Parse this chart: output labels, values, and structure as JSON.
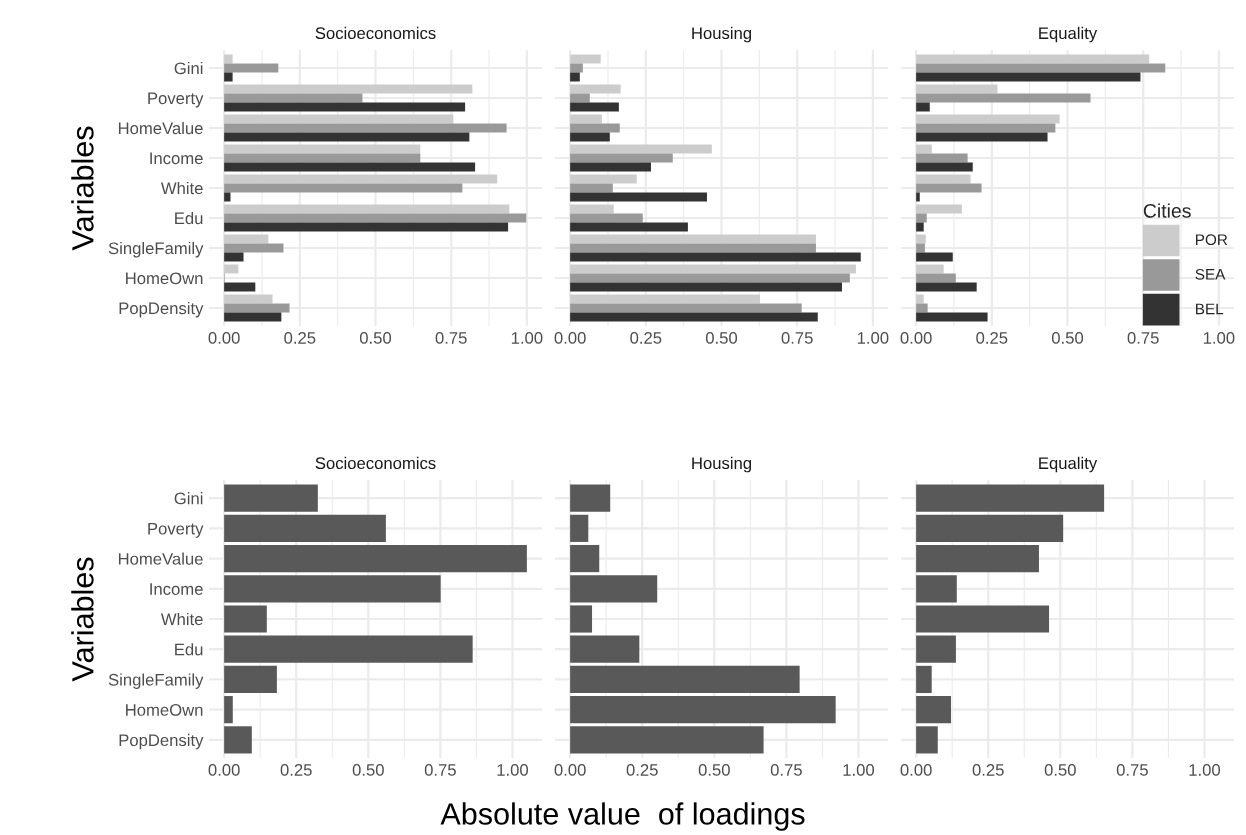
{
  "chart_data": [
    {
      "type": "bar",
      "orientation": "horizontal",
      "title": "Socioeconomics",
      "ylabel": "Variables",
      "categories": [
        "Gini",
        "Poverty",
        "HomeValue",
        "Income",
        "White",
        "Edu",
        "SingleFamily",
        "HomeOwn",
        "PopDensity"
      ],
      "xlim": [
        -0.05,
        1.05
      ],
      "xticks": [
        {
          "value": 0,
          "label": "0.00"
        },
        {
          "value": 0.25,
          "label": "0.25"
        },
        {
          "value": 0.5,
          "label": "0.50"
        },
        {
          "value": 0.75,
          "label": "0.75"
        },
        {
          "value": 1,
          "label": "1.00"
        }
      ],
      "grid": true,
      "series": [
        {
          "color": "#cccccc",
          "values": [
            0.028,
            0.82,
            0.757,
            0.648,
            0.902,
            0.942,
            0.146,
            0.047,
            0.16
          ]
        },
        {
          "color": "#999999",
          "values": [
            0.179,
            0.457,
            0.933,
            0.648,
            0.787,
            0.998,
            0.196,
            0.002,
            0.216
          ]
        },
        {
          "color": "#333333",
          "values": [
            0.028,
            0.796,
            0.81,
            0.829,
            0.021,
            0.938,
            0.064,
            0.103,
            0.189
          ]
        }
      ]
    },
    {
      "type": "bar",
      "orientation": "horizontal",
      "title": "Housing",
      "tick_labels": "x",
      "xlim": [
        -0.05,
        1.05
      ],
      "xticks": [
        {
          "value": 0,
          "label": "0.00"
        },
        {
          "value": 0.25,
          "label": "0.25"
        },
        {
          "value": 0.5,
          "label": "0.50"
        },
        {
          "value": 0.75,
          "label": "0.75"
        },
        {
          "value": 1,
          "label": "1.00"
        }
      ],
      "grid": true,
      "series": [
        {
          "color": "#cccccc",
          "values": [
            0.101,
            0.167,
            0.105,
            0.468,
            0.22,
            0.144,
            0.812,
            0.944,
            0.627
          ]
        },
        {
          "color": "#999999",
          "values": [
            0.042,
            0.065,
            0.164,
            0.339,
            0.141,
            0.24,
            0.812,
            0.924,
            0.765
          ]
        },
        {
          "color": "#333333",
          "values": [
            0.032,
            0.161,
            0.131,
            0.267,
            0.452,
            0.389,
            0.96,
            0.898,
            0.818
          ]
        }
      ]
    },
    {
      "type": "bar",
      "orientation": "horizontal",
      "title": "Equality",
      "tick_labels": "x",
      "legend": "bottom right",
      "legend_title": "Cities",
      "xlim": [
        -0.05,
        1.05
      ],
      "xticks": [
        {
          "value": 0,
          "label": "0.00"
        },
        {
          "value": 0.25,
          "label": "0.25"
        },
        {
          "value": 0.5,
          "label": "0.50"
        },
        {
          "value": 0.75,
          "label": "0.75"
        },
        {
          "value": 1,
          "label": "1.00"
        }
      ],
      "grid": true,
      "series": [
        {
          "name": "POR",
          "color": "#cccccc",
          "values": [
            0.77,
            0.269,
            0.474,
            0.052,
            0.18,
            0.151,
            0.032,
            0.091,
            0.025
          ]
        },
        {
          "name": "SEA",
          "color": "#999999",
          "values": [
            0.823,
            0.576,
            0.46,
            0.17,
            0.216,
            0.035,
            0.029,
            0.131,
            0.038
          ]
        },
        {
          "name": "BEL",
          "color": "#333333",
          "values": [
            0.741,
            0.045,
            0.434,
            0.187,
            0.012,
            0.025,
            0.121,
            0.2,
            0.236
          ]
        }
      ]
    },
    {
      "type": "bar",
      "orientation": "horizontal",
      "title": "Socioeconomics",
      "ylabel": "Variables",
      "categories": [
        "Gini",
        "Poverty",
        "HomeValue",
        "Income",
        "White",
        "Edu",
        "SingleFamily",
        "HomeOwn",
        "PopDensity"
      ],
      "xlim": [
        -0.0525,
        1.1025
      ],
      "xticks": [
        {
          "value": 0,
          "label": "0.00"
        },
        {
          "value": 0.25,
          "label": "0.25"
        },
        {
          "value": 0.5,
          "label": "0.50"
        },
        {
          "value": 0.75,
          "label": "0.75"
        },
        {
          "value": 1,
          "label": "1.00"
        }
      ],
      "grid": true,
      "series": [
        {
          "color": "#595959",
          "values": [
            0.325,
            0.561,
            1.05,
            0.751,
            0.148,
            0.862,
            0.183,
            0.03,
            0.096
          ]
        }
      ]
    },
    {
      "type": "bar",
      "orientation": "horizontal",
      "title": "Housing",
      "xlabel": "Absolute value  of loadings",
      "tick_labels": "x",
      "xlim": [
        -0.0525,
        1.1025
      ],
      "xticks": [
        {
          "value": 0,
          "label": "0.00"
        },
        {
          "value": 0.25,
          "label": "0.25"
        },
        {
          "value": 0.5,
          "label": "0.50"
        },
        {
          "value": 0.75,
          "label": "0.75"
        },
        {
          "value": 1,
          "label": "1.00"
        }
      ],
      "grid": true,
      "series": [
        {
          "color": "#595959",
          "values": [
            0.139,
            0.063,
            0.101,
            0.302,
            0.076,
            0.24,
            0.796,
            0.921,
            0.671
          ]
        }
      ]
    },
    {
      "type": "bar",
      "orientation": "horizontal",
      "title": "Equality",
      "tick_labels": "x",
      "xlim": [
        -0.0525,
        1.1025
      ],
      "xticks": [
        {
          "value": 0,
          "label": "0.00"
        },
        {
          "value": 0.25,
          "label": "0.25"
        },
        {
          "value": 0.5,
          "label": "0.50"
        },
        {
          "value": 0.75,
          "label": "0.75"
        },
        {
          "value": 1,
          "label": "1.00"
        }
      ],
      "grid": true,
      "series": [
        {
          "color": "#595959",
          "values": [
            0.652,
            0.51,
            0.426,
            0.141,
            0.461,
            0.138,
            0.054,
            0.121,
            0.075
          ]
        }
      ]
    }
  ]
}
